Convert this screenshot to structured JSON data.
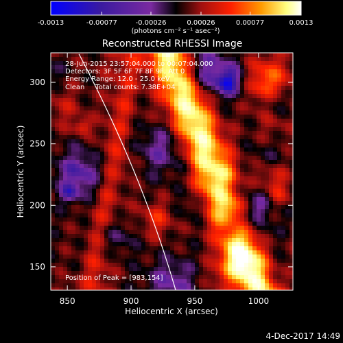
{
  "colorbar": {
    "tick_labels": [
      "-0.0013",
      "-0.00077",
      "-0.00026",
      "0.00026",
      "0.00077",
      "0.0013"
    ],
    "tick_values": [
      -0.0013,
      -0.00077,
      -0.00026,
      0.00026,
      0.00077,
      0.0013
    ],
    "range": [
      -0.0013,
      0.0013
    ],
    "unit": "(photons cm⁻² s⁻¹ asec⁻²)"
  },
  "chart_data": {
    "type": "heatmap",
    "title": "Reconstructed RHESSI Image",
    "xlabel": "Heliocentric X (arcsec)",
    "ylabel": "Heliocentric Y (arcsec)",
    "xlim": [
      837,
      1027
    ],
    "ylim": [
      131,
      324
    ],
    "x_ticks": [
      850,
      900,
      950,
      1000
    ],
    "x_tick_labels": [
      "850",
      "900",
      "950",
      "1000"
    ],
    "y_ticks": [
      150,
      200,
      250,
      300
    ],
    "y_tick_labels": [
      "150",
      "200",
      "250",
      "300"
    ],
    "info_lines": [
      "28-Jun-2015 23:57:04.000 to 00:07:04.000",
      "Detectors: 3F 5F 6F 7F 8F 9F, Att 0",
      "Energy Range: 12.0 - 25.0 keV",
      "Clean     Total counts: 7.38E+04"
    ],
    "peak_label": "Position of Peak = [983,154]",
    "peak": [
      983,
      154
    ],
    "colormap": [
      "#0000ff",
      "#3a1aa0",
      "#7a2aa0",
      "#000000",
      "#a01010",
      "#ff2000",
      "#ff9a00",
      "#ffff80",
      "#ffffff"
    ],
    "limb_color": "#ffffff"
  },
  "footer": {
    "date": "4-Dec-2017 14:49"
  }
}
